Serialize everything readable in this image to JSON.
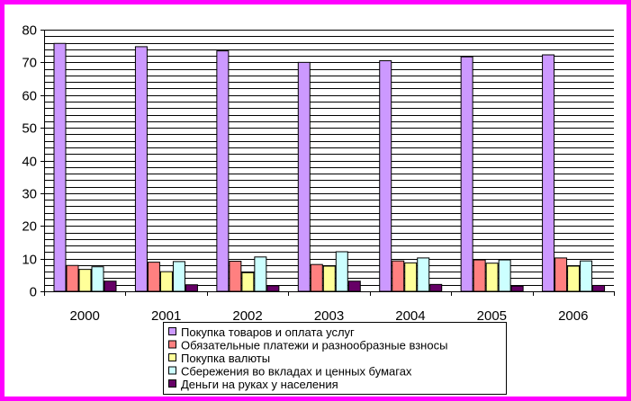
{
  "chart_data": {
    "type": "bar",
    "categories": [
      "2000",
      "2001",
      "2002",
      "2003",
      "2004",
      "2005",
      "2006"
    ],
    "series": [
      {
        "name": "Покупка товаров и оплата услуг",
        "color": "#cc99ff",
        "values": [
          75.8,
          74.8,
          73.5,
          70.0,
          70.5,
          71.7,
          72.3
        ]
      },
      {
        "name": "Обязательные платежи и разнообразные взносы",
        "color": "#ff8080",
        "values": [
          7.9,
          8.9,
          9.2,
          8.2,
          9.3,
          9.6,
          10.2
        ]
      },
      {
        "name": "Покупка валюты",
        "color": "#ffff99",
        "values": [
          6.7,
          6.0,
          5.7,
          7.7,
          8.7,
          8.6,
          7.7
        ]
      },
      {
        "name": "Сбережения во вкладах и ценных бумагах",
        "color": "#ccffff",
        "values": [
          7.5,
          9.1,
          10.5,
          12.1,
          10.2,
          9.6,
          9.3
        ]
      },
      {
        "name": "Деньги на руках у населения",
        "color": "#660066",
        "values": [
          3.1,
          2.0,
          1.7,
          3.1,
          2.1,
          1.6,
          1.8
        ]
      }
    ],
    "y_ticks": [
      "0",
      "10",
      "20",
      "30",
      "40",
      "50",
      "60",
      "70",
      "80"
    ],
    "ylim": [
      0,
      80
    ],
    "y_grid_step": 2,
    "grid": true,
    "legend_position": "bottom"
  },
  "colors": {
    "frame_border": "#ff00ff",
    "grid_line": "#000000",
    "plot_background": "#ffffff"
  }
}
